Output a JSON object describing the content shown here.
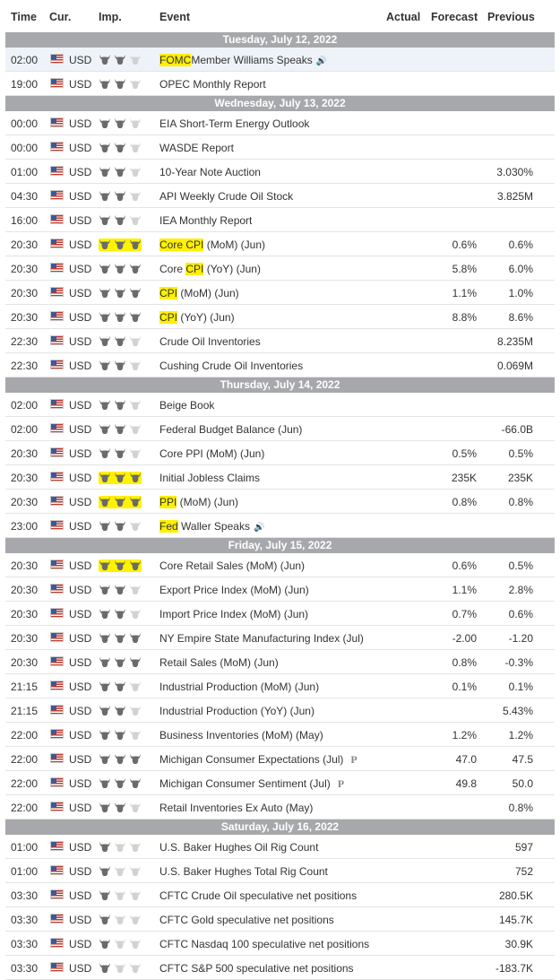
{
  "headers": {
    "time": "Time",
    "cur": "Cur.",
    "imp": "Imp.",
    "event": "Event",
    "actual": "Actual",
    "forecast": "Forecast",
    "previous": "Previous"
  },
  "colors": {
    "day_bar": "#a6a8ab",
    "highlight": "#ffef00",
    "row_hover": "#eef3f9"
  },
  "days": [
    {
      "label": "Tuesday, July 12, 2022",
      "rows": [
        {
          "time": "02:00",
          "cur": "USD",
          "imp": 2,
          "event": "Member Williams Speaks",
          "mark": "FOMC",
          "mark_pos": "pre",
          "speaker": true,
          "actual": "",
          "forecast": "",
          "previous": "",
          "hl_row": true
        },
        {
          "time": "19:00",
          "cur": "USD",
          "imp": 2,
          "event": "OPEC Monthly Report",
          "actual": "",
          "forecast": "",
          "previous": ""
        }
      ]
    },
    {
      "label": "Wednesday, July 13, 2022",
      "rows": [
        {
          "time": "00:00",
          "cur": "USD",
          "imp": 2,
          "event": "EIA Short-Term Energy Outlook",
          "actual": "",
          "forecast": "",
          "previous": ""
        },
        {
          "time": "00:00",
          "cur": "USD",
          "imp": 2,
          "event": "WASDE Report",
          "actual": "",
          "forecast": "",
          "previous": ""
        },
        {
          "time": "01:00",
          "cur": "USD",
          "imp": 2,
          "event": "10-Year Note Auction",
          "actual": "",
          "forecast": "",
          "previous": "3.030%"
        },
        {
          "time": "04:30",
          "cur": "USD",
          "imp": 2,
          "event": "API Weekly Crude Oil Stock",
          "actual": "",
          "forecast": "",
          "previous": "3.825M"
        },
        {
          "time": "16:00",
          "cur": "USD",
          "imp": 2,
          "event": "IEA Monthly Report",
          "actual": "",
          "forecast": "",
          "previous": ""
        },
        {
          "time": "20:30",
          "cur": "USD",
          "imp": 3,
          "imp_hl": true,
          "event": " (MoM) (Jun)",
          "mark": "Core CPI",
          "mark_pos": "pre",
          "actual": "",
          "forecast": "0.6%",
          "previous": "0.6%"
        },
        {
          "time": "20:30",
          "cur": "USD",
          "imp": 3,
          "event": " (YoY) (Jun)",
          "pre_text": "Core ",
          "mark": "CPI",
          "mark_pos": "mid",
          "actual": "",
          "forecast": "5.8%",
          "previous": "6.0%"
        },
        {
          "time": "20:30",
          "cur": "USD",
          "imp": 3,
          "event": " (MoM) (Jun)",
          "mark": "CPI",
          "mark_pos": "pre",
          "actual": "",
          "forecast": "1.1%",
          "previous": "1.0%"
        },
        {
          "time": "20:30",
          "cur": "USD",
          "imp": 3,
          "event": " (YoY) (Jun)",
          "mark": "CPI",
          "mark_pos": "pre",
          "actual": "",
          "forecast": "8.8%",
          "previous": "8.6%"
        },
        {
          "time": "22:30",
          "cur": "USD",
          "imp": 2,
          "event": "Crude Oil Inventories",
          "actual": "",
          "forecast": "",
          "previous": "8.235M"
        },
        {
          "time": "22:30",
          "cur": "USD",
          "imp": 2,
          "event": "Cushing Crude Oil Inventories",
          "actual": "",
          "forecast": "",
          "previous": "0.069M"
        }
      ]
    },
    {
      "label": "Thursday, July 14, 2022",
      "rows": [
        {
          "time": "02:00",
          "cur": "USD",
          "imp": 2,
          "event": "Beige Book",
          "actual": "",
          "forecast": "",
          "previous": ""
        },
        {
          "time": "02:00",
          "cur": "USD",
          "imp": 2,
          "event": "Federal Budget Balance (Jun)",
          "actual": "",
          "forecast": "",
          "previous": "-66.0B"
        },
        {
          "time": "20:30",
          "cur": "USD",
          "imp": 2,
          "event": "Core PPI (MoM) (Jun)",
          "actual": "",
          "forecast": "0.5%",
          "previous": "0.5%"
        },
        {
          "time": "20:30",
          "cur": "USD",
          "imp": 3,
          "imp_hl": true,
          "event": "Initial Jobless Claims",
          "actual": "",
          "forecast": "235K",
          "previous": "235K"
        },
        {
          "time": "20:30",
          "cur": "USD",
          "imp": 3,
          "imp_hl": true,
          "event": " (MoM) (Jun)",
          "mark": "PPI",
          "mark_pos": "pre",
          "actual": "",
          "forecast": "0.8%",
          "previous": "0.8%"
        },
        {
          "time": "23:00",
          "cur": "USD",
          "imp": 2,
          "event": " Waller Speaks",
          "mark": "Fed",
          "mark_pos": "pre",
          "speaker": true,
          "actual": "",
          "forecast": "",
          "previous": ""
        }
      ]
    },
    {
      "label": "Friday, July 15, 2022",
      "rows": [
        {
          "time": "20:30",
          "cur": "USD",
          "imp": 3,
          "imp_hl": true,
          "event": "Core Retail Sales (MoM) (Jun)",
          "actual": "",
          "forecast": "0.6%",
          "previous": "0.5%"
        },
        {
          "time": "20:30",
          "cur": "USD",
          "imp": 2,
          "event": "Export Price Index (MoM) (Jun)",
          "actual": "",
          "forecast": "1.1%",
          "previous": "2.8%"
        },
        {
          "time": "20:30",
          "cur": "USD",
          "imp": 2,
          "event": "Import Price Index (MoM) (Jun)",
          "actual": "",
          "forecast": "0.7%",
          "previous": "0.6%"
        },
        {
          "time": "20:30",
          "cur": "USD",
          "imp": 3,
          "event": "NY Empire State Manufacturing Index (Jul)",
          "actual": "",
          "forecast": "-2.00",
          "previous": "-1.20"
        },
        {
          "time": "20:30",
          "cur": "USD",
          "imp": 3,
          "event": "Retail Sales (MoM) (Jun)",
          "actual": "",
          "forecast": "0.8%",
          "previous": "-0.3%"
        },
        {
          "time": "21:15",
          "cur": "USD",
          "imp": 2,
          "event": "Industrial Production (MoM) (Jun)",
          "actual": "",
          "forecast": "0.1%",
          "previous": "0.1%"
        },
        {
          "time": "21:15",
          "cur": "USD",
          "imp": 2,
          "event": "Industrial Production (YoY) (Jun)",
          "actual": "",
          "forecast": "",
          "previous": "5.43%"
        },
        {
          "time": "22:00",
          "cur": "USD",
          "imp": 2,
          "event": "Business Inventories (MoM) (May)",
          "actual": "",
          "forecast": "1.2%",
          "previous": "1.2%"
        },
        {
          "time": "22:00",
          "cur": "USD",
          "imp": 3,
          "event": "Michigan Consumer Expectations (Jul)",
          "prelim": "P",
          "actual": "",
          "forecast": "47.0",
          "previous": "47.5"
        },
        {
          "time": "22:00",
          "cur": "USD",
          "imp": 3,
          "event": "Michigan Consumer Sentiment (Jul)",
          "prelim": "P",
          "actual": "",
          "forecast": "49.8",
          "previous": "50.0"
        },
        {
          "time": "22:00",
          "cur": "USD",
          "imp": 2,
          "event": "Retail Inventories Ex Auto (May)",
          "actual": "",
          "forecast": "",
          "previous": "0.8%"
        }
      ]
    },
    {
      "label": "Saturday, July 16, 2022",
      "rows": [
        {
          "time": "01:00",
          "cur": "USD",
          "imp": 1,
          "event": "U.S. Baker Hughes Oil Rig Count",
          "actual": "",
          "forecast": "",
          "previous": "597"
        },
        {
          "time": "01:00",
          "cur": "USD",
          "imp": 1,
          "event": "U.S. Baker Hughes Total Rig Count",
          "actual": "",
          "forecast": "",
          "previous": "752"
        },
        {
          "time": "03:30",
          "cur": "USD",
          "imp": 1,
          "event": "CFTC Crude Oil speculative net positions",
          "actual": "",
          "forecast": "",
          "previous": "280.5K"
        },
        {
          "time": "03:30",
          "cur": "USD",
          "imp": 1,
          "event": "CFTC Gold speculative net positions",
          "actual": "",
          "forecast": "",
          "previous": "145.7K"
        },
        {
          "time": "03:30",
          "cur": "USD",
          "imp": 1,
          "event": "CFTC Nasdaq 100 speculative net positions",
          "actual": "",
          "forecast": "",
          "previous": "30.9K"
        },
        {
          "time": "03:30",
          "cur": "USD",
          "imp": 1,
          "event": "CFTC S&P 500 speculative net positions",
          "actual": "",
          "forecast": "",
          "previous": "-183.7K"
        }
      ]
    }
  ]
}
